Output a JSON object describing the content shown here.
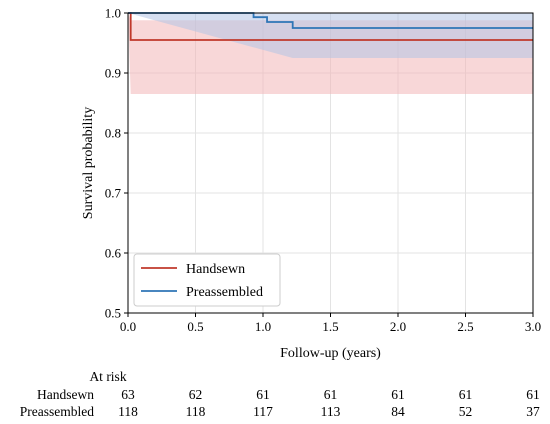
{
  "chart_data": {
    "type": "line",
    "title": "",
    "xlabel": "Follow-up (years)",
    "ylabel": "Survival probability",
    "xlim": [
      0,
      3
    ],
    "ylim": [
      0.5,
      1.0
    ],
    "x_ticks": [
      0.0,
      0.5,
      1.0,
      1.5,
      2.0,
      2.5,
      3.0
    ],
    "x_tick_labels": [
      "0.0",
      "0.5",
      "1.0",
      "1.5",
      "2.0",
      "2.5",
      "3.0"
    ],
    "y_ticks": [
      0.5,
      0.6,
      0.7,
      0.8,
      0.9,
      1.0
    ],
    "y_tick_labels": [
      "0.5",
      "0.6",
      "0.7",
      "0.8",
      "0.9",
      "1.0"
    ],
    "grid": true,
    "legend_position": "bottom-left",
    "series": [
      {
        "name": "Handsewn",
        "color": "#c0392b",
        "fill_color": "#f3b6b8",
        "steps": [
          [
            0.0,
            1.0
          ],
          [
            0.02,
            0.955
          ],
          [
            3.0,
            0.955
          ]
        ],
        "ci_upper": [
          [
            0.0,
            1.0
          ],
          [
            0.02,
            0.988
          ],
          [
            3.0,
            0.988
          ]
        ],
        "ci_lower": [
          [
            0.0,
            1.0
          ],
          [
            0.02,
            0.865
          ],
          [
            3.0,
            0.865
          ]
        ]
      },
      {
        "name": "Preassembled",
        "color": "#2e75b6",
        "fill_color": "#b3c5e6",
        "steps": [
          [
            0.0,
            1.0
          ],
          [
            0.93,
            0.993
          ],
          [
            1.03,
            0.985
          ],
          [
            1.22,
            0.975
          ],
          [
            3.0,
            0.975
          ]
        ],
        "ci_upper": [
          [
            0.0,
            1.0
          ],
          [
            3.0,
            1.0
          ]
        ],
        "ci_lower": [
          [
            0.0,
            1.0
          ],
          [
            1.22,
            0.925
          ],
          [
            3.0,
            0.925
          ]
        ]
      }
    ],
    "risk_table": {
      "header": "At risk",
      "times": [
        0.0,
        0.5,
        1.0,
        1.5,
        2.0,
        2.5,
        3.0
      ],
      "rows": [
        {
          "label": "Handsewn",
          "counts": [
            "63",
            "62",
            "61",
            "61",
            "61",
            "61",
            "61"
          ]
        },
        {
          "label": "Preassembled",
          "counts": [
            "118",
            "118",
            "117",
            "113",
            "84",
            "52",
            "37"
          ]
        }
      ]
    }
  }
}
